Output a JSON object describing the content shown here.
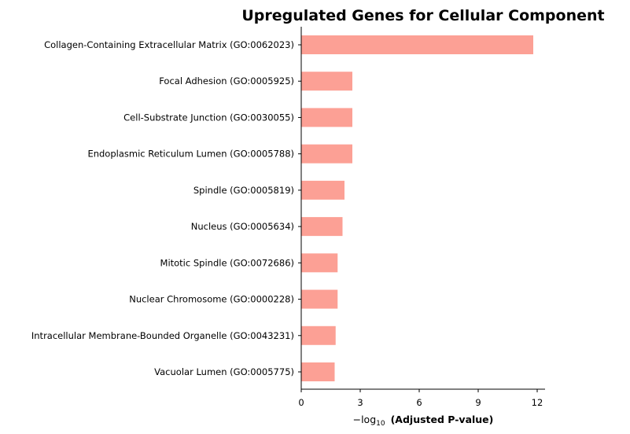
{
  "chart_data": {
    "type": "bar",
    "orientation": "horizontal",
    "title": "Upregulated Genes for Cellular Component",
    "xlabel": {
      "prefix": "−log",
      "subscript": "10",
      "text": "(Adjusted P-value)"
    },
    "ylabel": "",
    "categories": [
      "Collagen-Containing Extracellular Matrix (GO:0062023)",
      "Focal Adhesion (GO:0005925)",
      "Cell-Substrate Junction (GO:0030055)",
      "Endoplasmic Reticulum Lumen (GO:0005788)",
      "Spindle (GO:0005819)",
      "Nucleus (GO:0005634)",
      "Mitotic Spindle (GO:0072686)",
      "Nuclear Chromosome (GO:0000228)",
      "Intracellular Membrane-Bounded Organelle (GO:0043231)",
      "Vacuolar Lumen (GO:0005775)"
    ],
    "values": [
      11.8,
      2.6,
      2.6,
      2.6,
      2.2,
      2.1,
      1.85,
      1.85,
      1.75,
      1.7
    ],
    "xlim": [
      0,
      12.4
    ],
    "xticks": [
      0,
      3,
      6,
      9,
      12
    ],
    "bar_color": "#fca095",
    "grid": false,
    "legend": "none"
  }
}
